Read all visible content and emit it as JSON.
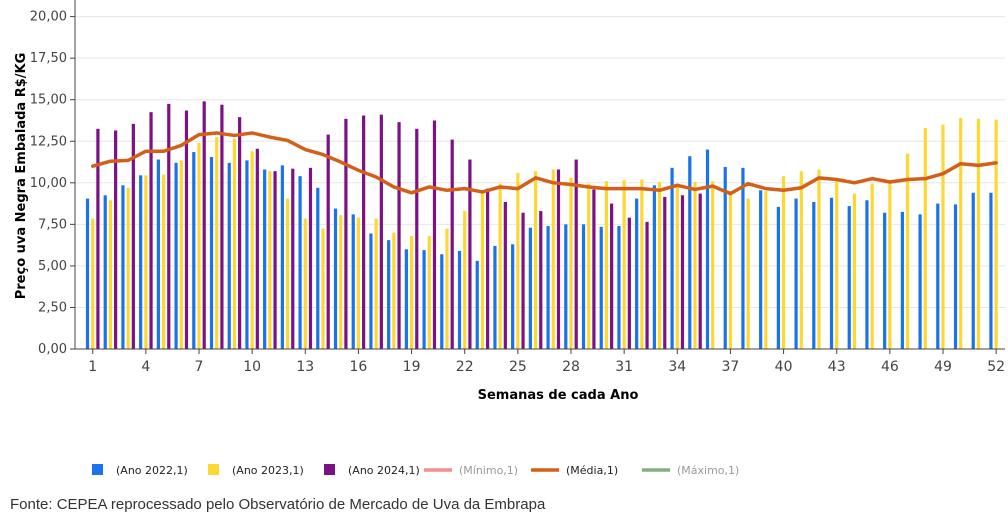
{
  "chart_data": {
    "type": "bar",
    "xlabel": "Semanas de cada Ano",
    "ylabel": "Preço uva Negra Embalada R$/KG",
    "ylim": [
      0,
      21
    ],
    "xlim": [
      0,
      52.5
    ],
    "y_ticks": [
      "0,00",
      "2,50",
      "5,00",
      "7,50",
      "10,00",
      "12,50",
      "15,00",
      "17,50",
      "20,00"
    ],
    "y_tick_values": [
      0,
      2.5,
      5,
      7.5,
      10,
      12.5,
      15,
      17.5,
      20
    ],
    "x_ticks": [
      1,
      4,
      7,
      10,
      13,
      16,
      19,
      22,
      25,
      28,
      31,
      34,
      37,
      40,
      43,
      46,
      49,
      52
    ],
    "legend_position": "bottom",
    "series": [
      {
        "name": "(Ano 2022,1)",
        "type": "bar",
        "color": "#1a73e8",
        "values": [
          9.05,
          9.25,
          9.85,
          10.45,
          11.4,
          11.2,
          11.85,
          11.55,
          11.2,
          11.35,
          10.8,
          11.05,
          10.4,
          9.7,
          8.45,
          8.1,
          6.95,
          6.55,
          6.0,
          5.95,
          5.7,
          5.9,
          5.3,
          6.2,
          6.3,
          7.3,
          7.4,
          7.5,
          7.5,
          7.35,
          7.4,
          9.05,
          9.85,
          10.9,
          11.6,
          12.0,
          10.95,
          10.9,
          9.55,
          8.55,
          9.05,
          8.85,
          9.1,
          8.6,
          8.95,
          8.2,
          8.25,
          8.1,
          8.75,
          8.7,
          9.4,
          9.4
        ]
      },
      {
        "name": "(Ano 2023,1)",
        "type": "bar",
        "color": "#fdd835",
        "values": [
          7.85,
          8.95,
          9.7,
          10.45,
          10.5,
          11.35,
          12.4,
          12.75,
          12.65,
          11.9,
          10.7,
          9.05,
          7.85,
          7.25,
          8.05,
          7.9,
          7.85,
          7.0,
          6.8,
          6.8,
          7.25,
          8.3,
          9.45,
          9.95,
          10.6,
          10.7,
          10.8,
          10.3,
          9.95,
          10.1,
          10.15,
          10.2,
          10.05,
          9.95,
          10.05,
          10.1,
          9.5,
          9.05,
          9.5,
          10.4,
          10.7,
          10.8,
          10.15,
          9.35,
          9.95,
          10.05,
          11.75,
          13.3,
          13.5,
          13.9,
          13.85,
          13.8
        ]
      },
      {
        "name": "(Ano 2024,1)",
        "type": "bar",
        "color": "#7b1183",
        "values": [
          13.25,
          13.15,
          13.55,
          14.25,
          14.75,
          14.35,
          14.9,
          14.7,
          13.95,
          12.05,
          10.7,
          10.85,
          10.9,
          12.9,
          13.85,
          14.05,
          14.1,
          13.65,
          13.25,
          13.75,
          12.6,
          11.4,
          9.65,
          8.85,
          8.2,
          8.3,
          10.8,
          11.4,
          9.6,
          8.75,
          7.9,
          7.65,
          9.15,
          9.25,
          9.35
        ]
      },
      {
        "name": "(Mínimo,1)",
        "type": "line",
        "color": "#f28e8e",
        "values": []
      },
      {
        "name": "(Média,1)",
        "type": "line",
        "color": "#d2601a",
        "values": [
          11.0,
          11.3,
          11.35,
          11.9,
          11.9,
          12.25,
          12.9,
          13.0,
          12.85,
          13.0,
          12.75,
          12.55,
          12.0,
          11.7,
          11.25,
          10.75,
          10.35,
          9.75,
          9.4,
          9.75,
          9.55,
          9.65,
          9.45,
          9.75,
          9.65,
          10.3,
          10.0,
          9.9,
          9.75,
          9.65,
          9.65,
          9.65,
          9.55,
          9.85,
          9.6,
          9.8,
          9.35,
          9.95,
          9.65,
          9.55,
          9.7,
          10.3,
          10.2,
          10.0,
          10.25,
          10.05,
          10.2,
          10.25,
          10.55,
          11.15,
          11.05,
          11.2
        ]
      },
      {
        "name": "(Máximo,1)",
        "type": "line",
        "color": "#80b080",
        "values": []
      }
    ]
  },
  "source": "Fonte: CEPEA reprocessado pelo Observatório de Mercado de Uva da Embrapa"
}
